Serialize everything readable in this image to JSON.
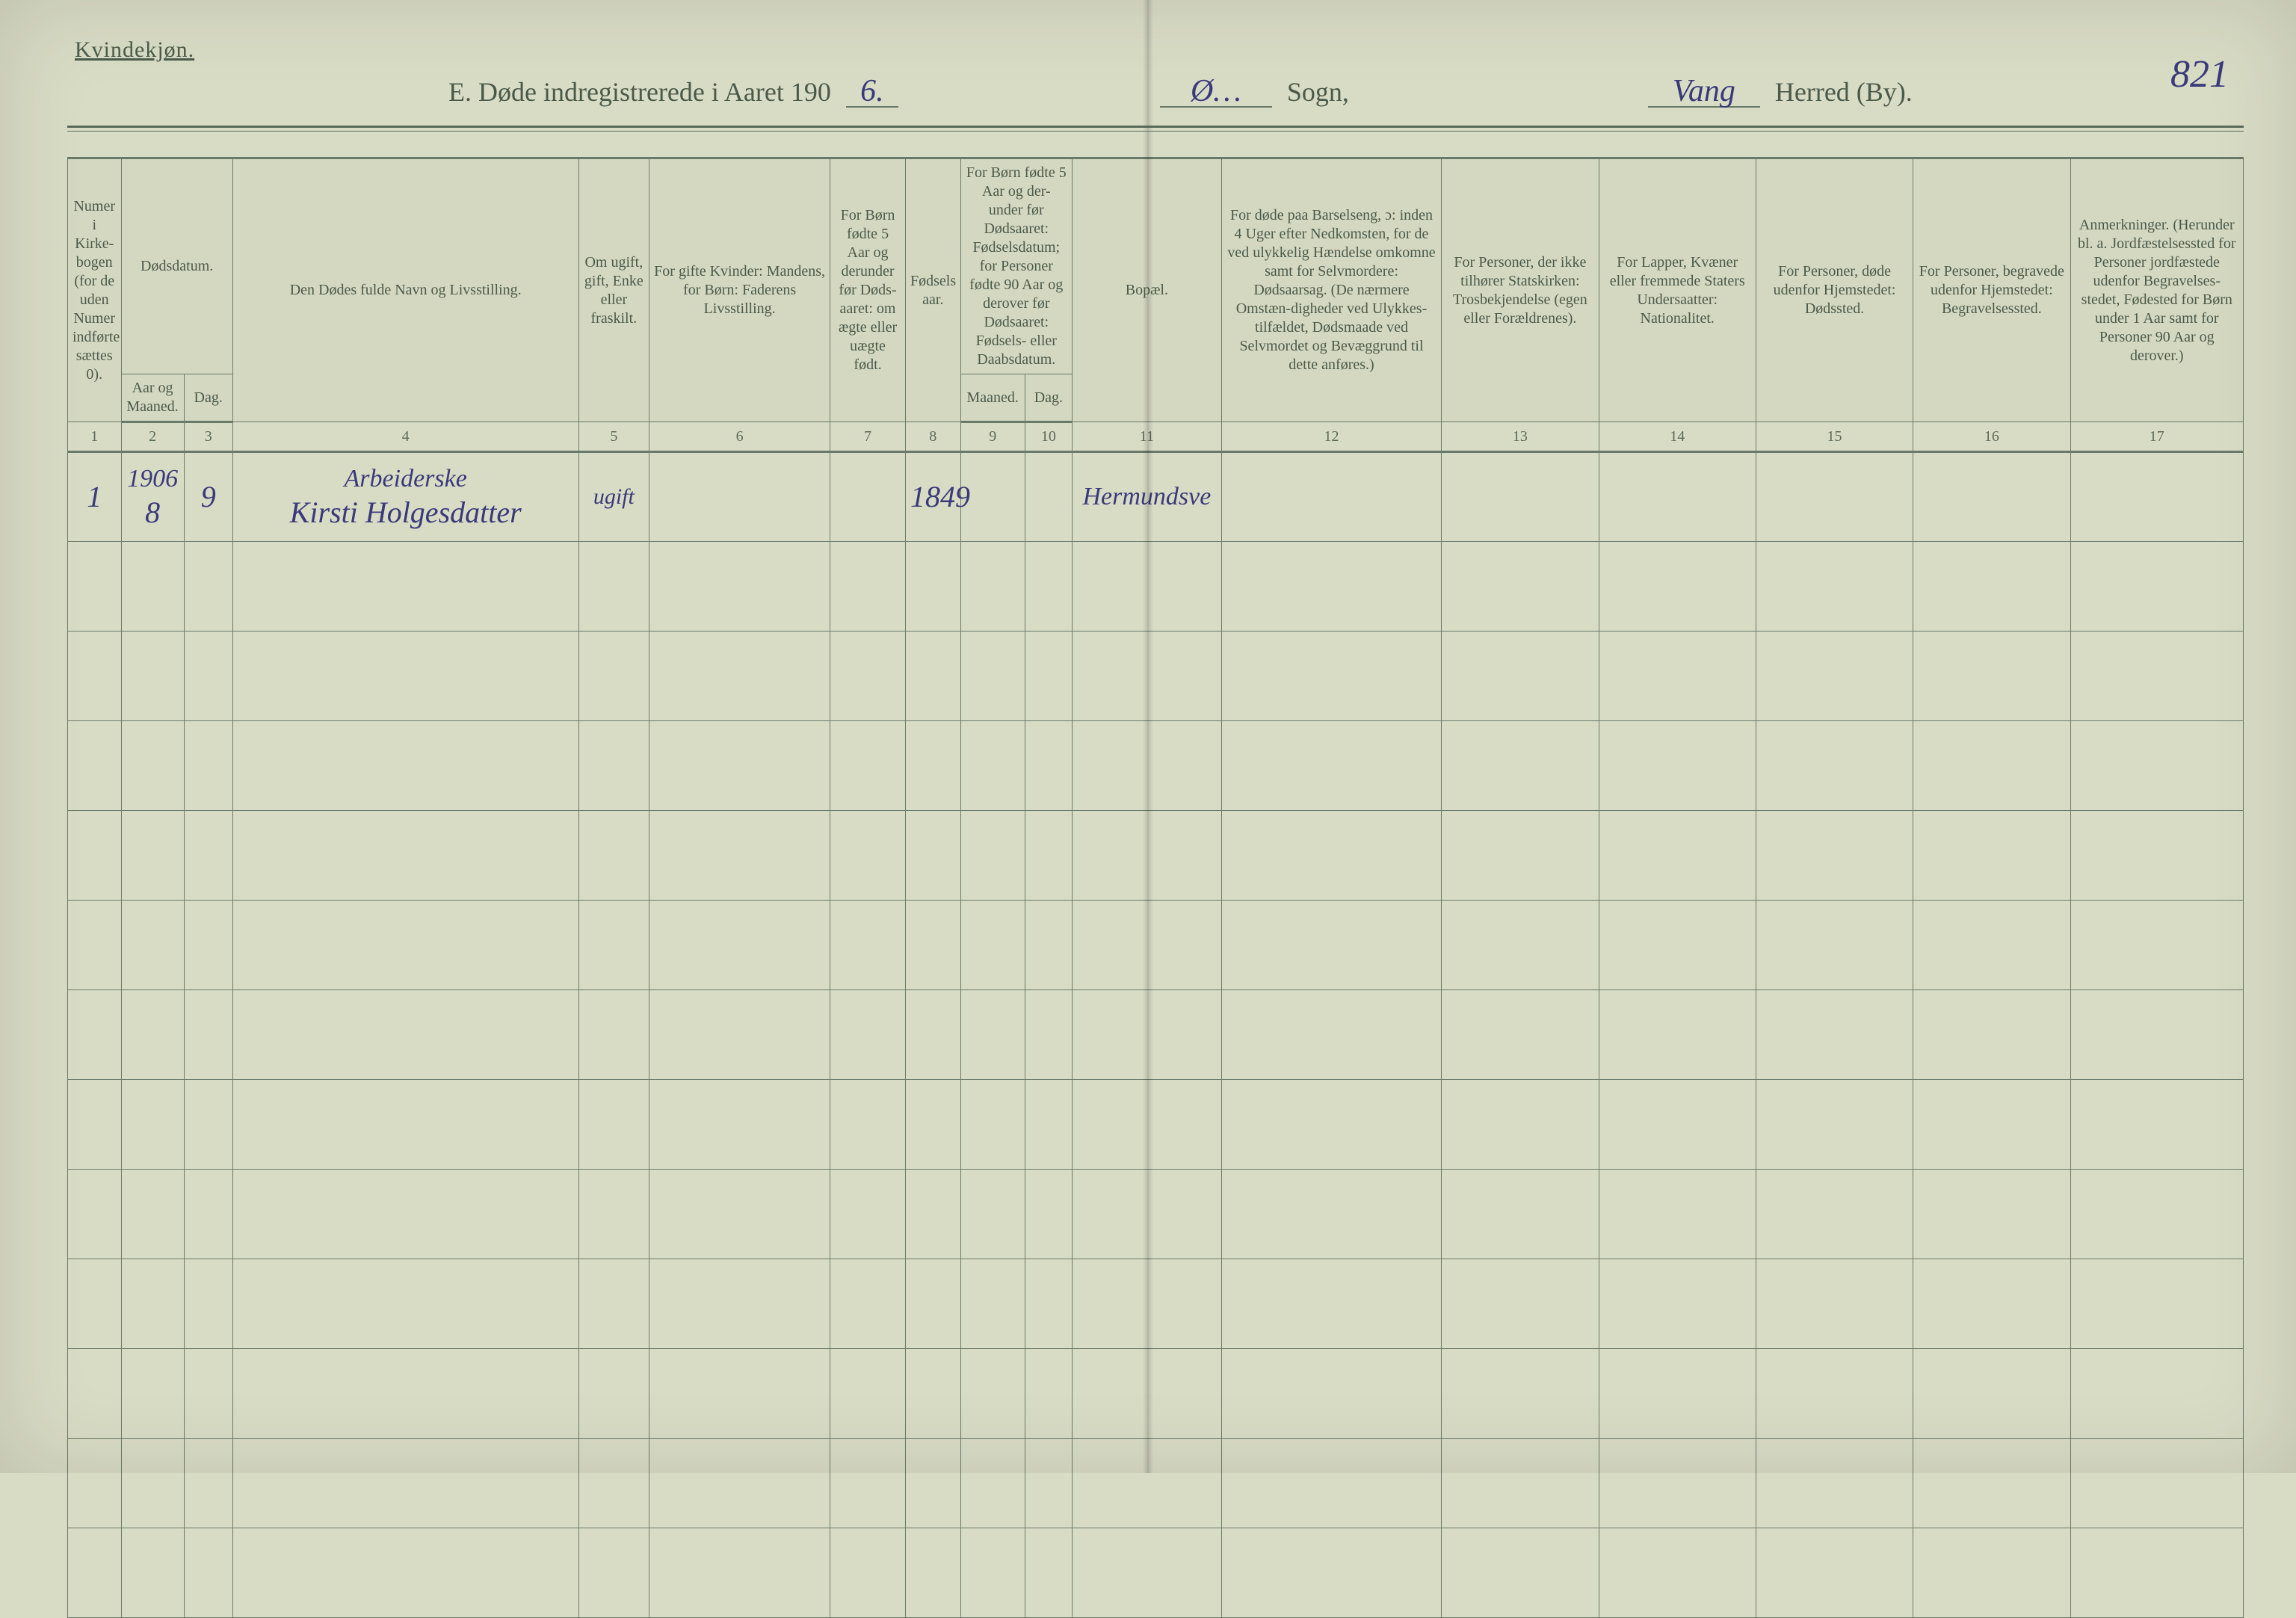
{
  "colors": {
    "paper": "#d9dcc5",
    "ink_print": "#4a5a4a",
    "ink_rule": "#5a6a5a",
    "ink_hand": "#3a3a7a"
  },
  "typography": {
    "print_family": "Georgia serif",
    "hand_family": "Brush Script MT cursive",
    "title_size_pt": 27,
    "header_cell_size_pt": 15,
    "body_cell_size_pt": 16,
    "hand_big_pt": 30,
    "hand_med_pt": 25
  },
  "header": {
    "corner_label": "Kvindekjøn.",
    "title_prefix": "E.   Døde indregistrerede i Aaret 190",
    "year_suffix_hand": "6.",
    "sogn_blank_hand": "Ø…",
    "sogn_label": "Sogn,",
    "herred_blank_hand": "Vang",
    "herred_label": "Herred (By).",
    "page_number_hand": "821"
  },
  "columns": {
    "c1": "Numer i Kirke-bogen (for de uden Numer indførte sættes 0).",
    "c2_group": "Dødsdatum.",
    "c2": "Aar og Maaned.",
    "c3": "Dag.",
    "c4": "Den Dødes fulde Navn og Livsstilling.",
    "c5": "Om ugift, gift, Enke eller fraskilt.",
    "c6": "For gifte Kvinder: Mandens, for Børn: Faderens Livsstilling.",
    "c7": "For Børn fødte 5 Aar og derunder før Døds-aaret: om ægte eller uægte født.",
    "c8": "Fødsels aar.",
    "c9_group": "For Børn fødte 5 Aar og der-under før Dødsaaret: Fødselsdatum; for Personer fødte 90 Aar og derover før Dødsaaret: Fødsels- eller Daabsdatum.",
    "c9": "Maaned.",
    "c10": "Dag.",
    "c11": "Bopæl.",
    "c12": "For døde paa Barselseng, ɔ: inden 4 Uger efter Nedkomsten, for de ved ulykkelig Hændelse omkomne samt for Selvmordere: Dødsaarsag. (De nærmere Omstæn-digheder ved Ulykkes-tilfældet, Dødsmaade ved Selvmordet og Bevæggrund til dette anføres.)",
    "c13": "For Personer, der ikke tilhører Statskirken: Trosbekjendelse (egen eller Forældrenes).",
    "c14": "For Lapper, Kvæner eller fremmede Staters Undersaatter: Nationalitet.",
    "c15": "For Personer, døde udenfor Hjemstedet: Dødssted.",
    "c16": "For Personer, begravede udenfor Hjemstedet: Begravelsessted.",
    "c17": "Anmerkninger. (Herunder bl. a. Jordfæstelsessted for Personer jordfæstede udenfor Begravelses-stedet, Fødested for Børn under 1 Aar samt for Personer 90 Aar og derover.)"
  },
  "colnums": [
    "1",
    "2",
    "3",
    "4",
    "5",
    "6",
    "7",
    "8",
    "9",
    "10",
    "11",
    "12",
    "13",
    "14",
    "15",
    "16",
    "17"
  ],
  "rows": [
    {
      "c1": "1",
      "c2_top": "1906",
      "c2": "8",
      "c3": "9",
      "c4_top": "Arbeiderske",
      "c4": "Kirsti Holgesdatter",
      "c5": "ugift",
      "c6": "",
      "c7": "",
      "c8": "1849",
      "c9": "",
      "c10": "",
      "c11": "Hermundsve",
      "c12": "",
      "c13": "",
      "c14": "",
      "c15": "",
      "c16": "",
      "c17": ""
    }
  ],
  "blank_row_count": 12
}
